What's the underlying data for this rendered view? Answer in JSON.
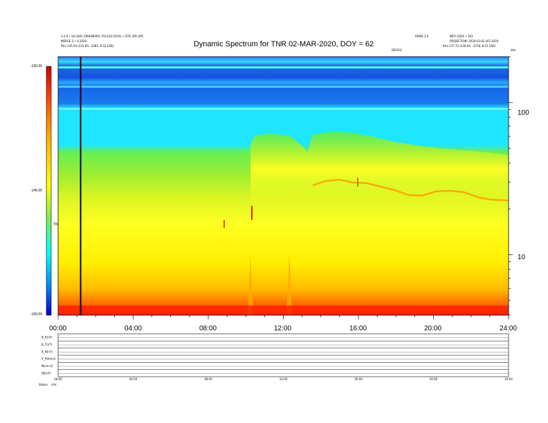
{
  "header": {
    "left_line1": "1.0.0 • SCI.DOC EPHEMERIS (TOI.E10.50YS) • SITE (RP) EPC",
    "left_line2": "MERGE 3 • 0.2020",
    "left_line3": "Rho 235.04 (231.85, -3385, 8.52 GSE)",
    "right_line1": "INFO 2020 • 301",
    "right_line2": "PROJECTION: 2020-03-02 HCI 2020",
    "right_line3": "Rho 237.72 (238.64, -3378, 8.52 GSE)",
    "center_small_1": "RPWS 2.0",
    "center_small_2": "DEVICE",
    "corner_small": "kHz"
  },
  "chart_data": {
    "type": "heatmap",
    "title": "Dynamic Spectrum for TNR 02-MAR-2020, DOY = 62",
    "x_ticks": [
      "00:00",
      "04:00",
      "08:00",
      "12:00",
      "16:00",
      "20:00",
      "24:00"
    ],
    "x_range_hours": [
      0,
      24
    ],
    "y_scale": "log",
    "y_range": [
      4,
      200
    ],
    "y_ticks": [
      100,
      10
    ],
    "y_tick_labels": [
      "100",
      "10"
    ],
    "colorbar": {
      "ticks": [
        "-130.00",
        "-145.00",
        "-160.00"
      ],
      "label": "TNR",
      "colors": [
        "#cc0000",
        "#ff3300",
        "#ff8800",
        "#ffcc00",
        "#ffff00",
        "#88ee44",
        "#00ffff",
        "#0088ff",
        "#0000cc"
      ]
    },
    "marker_hour": 1.2,
    "colors": {
      "band_top": "#3a8ef0",
      "band_dark": "#1a5ae0",
      "cyan": "#1ee6ff",
      "green": "#55ee55",
      "yellow": "#ffff22",
      "orange": "#ffb000",
      "red": "#ff2200"
    }
  },
  "panels": {
    "labels": [
      "B_R(nT)",
      "B_T(nT)",
      "B_N(nT)",
      "V_R(km/s)",
      "N(cm-3)",
      "|B|(nT)"
    ],
    "bottom_label": "Status",
    "bottom_label2": "info",
    "x_ticks": [
      "00:00",
      "04:00",
      "08:00",
      "12:00",
      "16:00",
      "20:00",
      "24:00"
    ]
  }
}
